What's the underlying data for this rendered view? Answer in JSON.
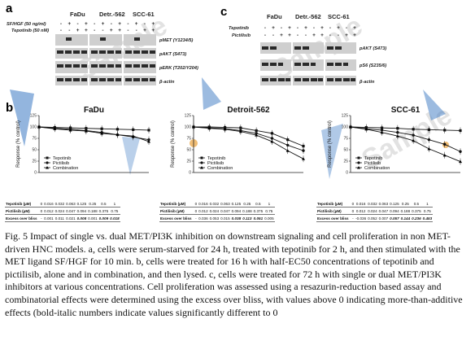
{
  "panel_a": {
    "letter": "a",
    "conditions": [
      {
        "label": "SF/HGF (50 ng/ml)",
        "signs": [
          "-",
          "+",
          "-",
          "+",
          "-",
          "+",
          "-",
          "+",
          "-",
          "+",
          "-",
          "+"
        ]
      },
      {
        "label": "Tepotinib (50 nM)",
        "signs": [
          "-",
          "-",
          "+",
          "+",
          "-",
          "-",
          "+",
          "+",
          "-",
          "-",
          "+",
          "+"
        ]
      }
    ],
    "cell_lines": [
      "FaDu",
      "Detr.-562",
      "SCC-61"
    ],
    "markers": [
      "pMET (Y1234/5)",
      "pAKT (S473)",
      "pERK (T202/Y204)",
      "β-actin"
    ]
  },
  "panel_c": {
    "letter": "c",
    "conditions": [
      {
        "label": "Tepotinib",
        "signs": [
          "-",
          "+",
          "-",
          "+",
          "-",
          "+",
          "-",
          "+",
          "-",
          "+",
          "-",
          "+"
        ]
      },
      {
        "label": "Pictilisib",
        "signs": [
          "-",
          "-",
          "+",
          "+",
          "-",
          "-",
          "+",
          "+",
          "-",
          "-",
          "+",
          "+"
        ]
      }
    ],
    "cell_lines": [
      "FaDu",
      "Detr.-562",
      "SCC-61"
    ],
    "markers": [
      "pAKT (S473)",
      "pS6 (S235/6)",
      "β-actin"
    ]
  },
  "panel_b": {
    "letter": "b",
    "ylabel": "Response (% control)",
    "legend": [
      "Tepotinib",
      "Pictilisib",
      "Combination"
    ],
    "row_labels": [
      "Tepotinib (µM)",
      "Pictilisib (µM)",
      "Excess over bliss"
    ],
    "tepotinib_conc": [
      "0",
      "0.016",
      "0.032",
      "0.063",
      "0.125",
      "0.25",
      "0.5",
      "1"
    ],
    "pictilisib_conc_fadu": [
      "0",
      "0.012",
      "0.024",
      "0.047",
      "0.094",
      "0.188",
      "0.375",
      "0.75"
    ],
    "pictilisib_conc_detroit": [
      "0",
      "0.012",
      "0.024",
      "0.047",
      "0.094",
      "0.188",
      "0.375",
      "0.75"
    ],
    "pictilisib_conc_scc": [
      "0",
      "0.012",
      "0.024",
      "0.047",
      "0.094",
      "0.188",
      "0.375",
      "0.75"
    ],
    "bliss_fadu": [
      "-",
      "0.001",
      "0.011",
      "0.021",
      "0.008",
      "0.001",
      "0.009",
      "0.018"
    ],
    "bliss_detroit": [
      "-",
      "0.036",
      "0.053",
      "0.015",
      "0.038",
      "0.113",
      "0.051",
      "0.005"
    ],
    "bliss_scc": [
      "-",
      "-0.036",
      "0.052",
      "0.007",
      "0.057",
      "0.144",
      "0.236",
      "0.453"
    ]
  },
  "chart_data": [
    {
      "type": "line",
      "title": "FaDu",
      "ylabel": "Response (% control)",
      "ylim": [
        0,
        125
      ],
      "yticks": [
        "0",
        "25",
        "50",
        "75",
        "100",
        "125"
      ],
      "x_points": 8,
      "series": [
        {
          "name": "Tepotinib",
          "values": [
            100,
            99,
            98,
            97,
            96,
            95,
            94,
            93
          ]
        },
        {
          "name": "Pictilisib",
          "values": [
            100,
            97,
            95,
            92,
            88,
            83,
            78,
            72
          ]
        },
        {
          "name": "Combination",
          "values": [
            100,
            96,
            93,
            91,
            86,
            83,
            80,
            68
          ]
        }
      ]
    },
    {
      "type": "line",
      "title": "Detroit-562",
      "ylabel": "Response (% control)",
      "ylim": [
        0,
        125
      ],
      "yticks": [
        "0",
        "25",
        "50",
        "75",
        "100",
        "125"
      ],
      "x_points": 8,
      "series": [
        {
          "name": "Tepotinib",
          "values": [
            100,
            100,
            99,
            98,
            92,
            86,
            72,
            58
          ]
        },
        {
          "name": "Pictilisib",
          "values": [
            100,
            98,
            96,
            92,
            86,
            75,
            60,
            48
          ]
        },
        {
          "name": "Combination",
          "values": [
            100,
            97,
            95,
            90,
            82,
            68,
            48,
            30
          ]
        }
      ]
    },
    {
      "type": "line",
      "title": "SCC-61",
      "ylabel": "Response (% control)",
      "ylim": [
        0,
        125
      ],
      "yticks": [
        "0",
        "25",
        "50",
        "75",
        "100",
        "125"
      ],
      "x_points": 8,
      "series": [
        {
          "name": "Tepotinib",
          "values": [
            100,
            99,
            98,
            97,
            95,
            94,
            93,
            92
          ]
        },
        {
          "name": "Pictilisib",
          "values": [
            100,
            96,
            93,
            88,
            82,
            72,
            62,
            46
          ]
        },
        {
          "name": "Combination",
          "values": [
            100,
            95,
            88,
            80,
            70,
            52,
            38,
            24
          ]
        }
      ]
    }
  ],
  "caption": "Fig. 5 Impact of single vs. dual MET/PI3K inhibition on downstream signaling and cell proliferation in non MET-driven HNC models. a, cells were serum-starved for 24 h, treated with tepotinib for 2 h, and then stimulated with the MET ligand SF/HGF for 10 min. b, cells were treated for 16 h with half-EC50 concentrations of tepotinib and pictilisib, alone and in combination, and then lysed. c, cells were treated for 72 h with single or dual MET/PI3K inhibitors at various concentrations. Cell proliferation was assessed using a resazurin-reduction based assay and combinatorial effects were determined using the excess over bliss, with values above 0 indicating more-than-additive effects (bold-italic numbers indicate values significantly different to 0",
  "watermark": "Sample",
  "colors": {
    "series": "#111111",
    "accent_blue": "#3a78c2",
    "accent_orange": "#e9a13a"
  }
}
